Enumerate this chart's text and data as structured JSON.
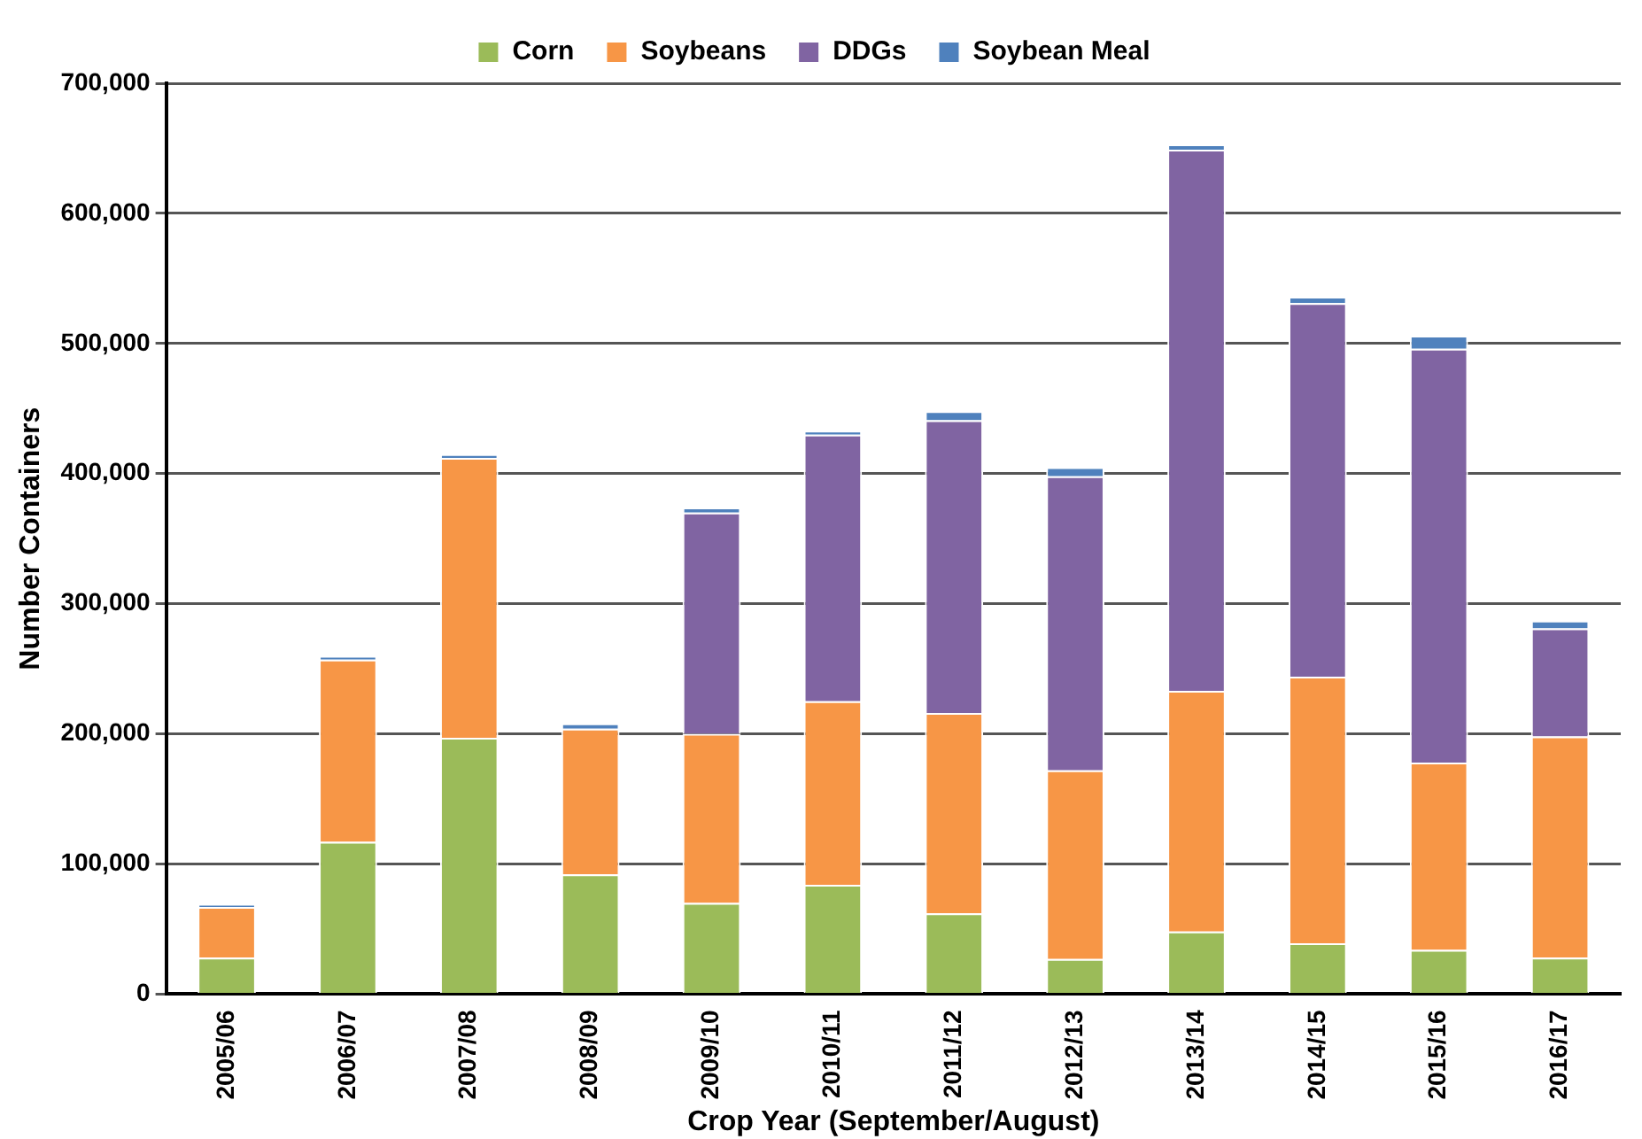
{
  "chart_data": {
    "type": "bar",
    "stacked": true,
    "xlabel": "Crop Year (September/August)",
    "ylabel": "Number Containers",
    "categories": [
      "2005/06",
      "2006/07",
      "2007/08",
      "2008/09",
      "2009/10",
      "2010/11",
      "2011/12",
      "2012/13",
      "2013/14",
      "2014/15",
      "2015/16",
      "2016/17"
    ],
    "series": [
      {
        "name": "Corn",
        "color": "#9bbb59",
        "values": [
          28000,
          117000,
          197000,
          92000,
          70000,
          84000,
          62000,
          27000,
          48000,
          39000,
          34000,
          28000
        ]
      },
      {
        "name": "Soybeans",
        "color": "#f79646",
        "values": [
          39000,
          140000,
          215000,
          112000,
          130000,
          141000,
          154000,
          145000,
          185000,
          205000,
          144000,
          170000
        ]
      },
      {
        "name": "DDGs",
        "color": "#8064a2",
        "values": [
          null,
          null,
          null,
          null,
          170000,
          205000,
          225000,
          226000,
          416000,
          287000,
          318000,
          83000
        ]
      },
      {
        "name": "Soybean Meal",
        "color": "#4f81bd",
        "values": [
          2000,
          3000,
          3000,
          4000,
          4000,
          3000,
          7000,
          7000,
          4000,
          5000,
          10000,
          6000
        ]
      }
    ],
    "ylim": [
      0,
      700000
    ],
    "yticks": [
      {
        "value": 0,
        "label": "0"
      },
      {
        "value": 100000,
        "label": "100,000"
      },
      {
        "value": 200000,
        "label": "200,000"
      },
      {
        "value": 300000,
        "label": "300,000"
      },
      {
        "value": 400000,
        "label": "400,000"
      },
      {
        "value": 500000,
        "label": "500,000"
      },
      {
        "value": 600000,
        "label": "600,000"
      },
      {
        "value": 700000,
        "label": "700,000"
      }
    ],
    "grid": "y",
    "legend": "top"
  }
}
